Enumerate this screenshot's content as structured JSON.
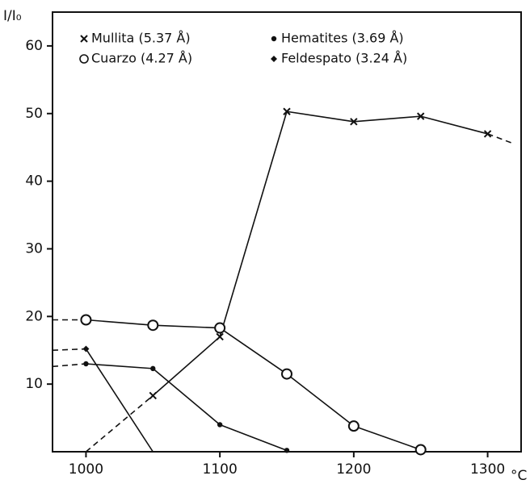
{
  "chart_data": {
    "type": "line",
    "ylabel": "I/I₀",
    "xlabel": "°C",
    "xlim": [
      975,
      1325
    ],
    "ylim": [
      0,
      65
    ],
    "xticks": [
      1000,
      1100,
      1200,
      1300
    ],
    "yticks": [
      10,
      20,
      30,
      40,
      50,
      60
    ],
    "series": [
      {
        "name": "Mullita (5.37 Å)",
        "color": "#111111",
        "marker": "x",
        "x": [
          1000,
          1050,
          1100,
          1150,
          1200,
          1250,
          1300,
          1320
        ],
        "values": [
          0,
          8.3,
          17,
          50.3,
          48.8,
          49.6,
          47,
          45.5
        ],
        "marked": [
          false,
          true,
          true,
          true,
          true,
          true,
          true,
          false
        ],
        "dashed_segments": [
          0,
          6
        ]
      },
      {
        "name": "Cuarzo (4.27 Å)",
        "color": "#111111",
        "marker": "o",
        "x": [
          975,
          1000,
          1050,
          1100,
          1150,
          1200,
          1250
        ],
        "values": [
          19.5,
          19.5,
          18.7,
          18.3,
          11.5,
          3.8,
          0.3
        ],
        "marked": [
          false,
          true,
          true,
          true,
          true,
          true,
          true
        ],
        "dashed_segments": [
          0
        ]
      },
      {
        "name": "Hematites (3.69 Å)",
        "color": "#111111",
        "marker": "dot",
        "x": [
          975,
          1000,
          1050,
          1100,
          1150
        ],
        "values": [
          12.6,
          13,
          12.3,
          4,
          0.2
        ],
        "marked": [
          false,
          true,
          true,
          true,
          true
        ],
        "dashed_segments": [
          0
        ]
      },
      {
        "name": "Feldespato (3.24 Å)",
        "color": "#111111",
        "marker": "diamond",
        "x": [
          975,
          1000,
          1050
        ],
        "values": [
          15,
          15.2,
          0
        ],
        "marked": [
          false,
          true,
          false
        ],
        "dashed_segments": [
          0
        ]
      }
    ]
  }
}
